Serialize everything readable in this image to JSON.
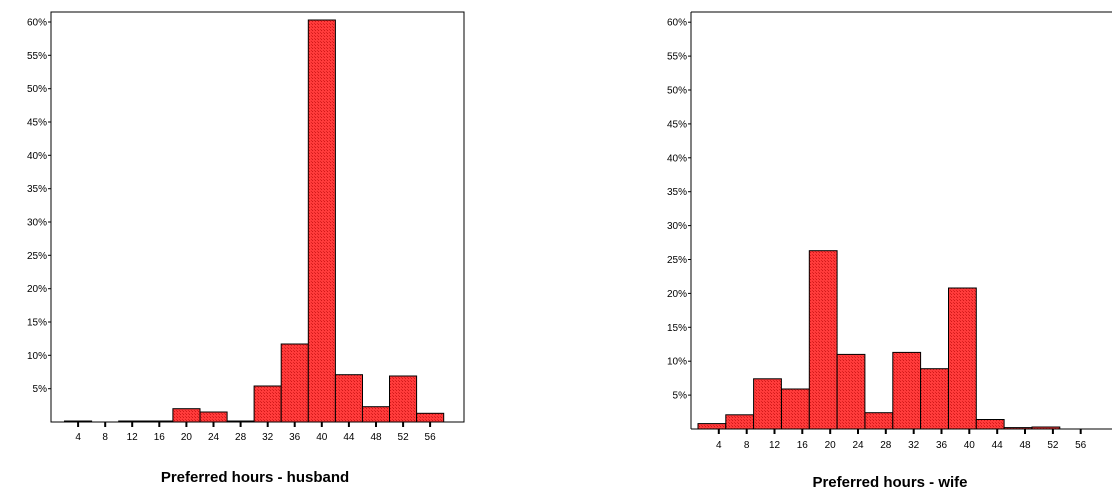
{
  "chart_data": [
    {
      "type": "bar",
      "title": "",
      "xlabel": "Preferred hours - husband",
      "ylabel": "",
      "ylim": [
        0,
        61.5
      ],
      "yticks": [
        "5%",
        "10%",
        "15%",
        "20%",
        "25%",
        "30%",
        "35%",
        "40%",
        "45%",
        "50%",
        "55%",
        "60%"
      ],
      "ytick_values": [
        5,
        10,
        15,
        20,
        25,
        30,
        35,
        40,
        45,
        50,
        55,
        60
      ],
      "xticks": [
        "4",
        "8",
        "12",
        "16",
        "20",
        "24",
        "28",
        "32",
        "36",
        "40",
        "44",
        "48",
        "52",
        "56"
      ],
      "bin_edges": [
        2,
        6,
        10,
        14,
        18,
        22,
        26,
        30,
        34,
        38,
        42,
        46,
        50,
        54,
        58
      ],
      "values": [
        0.15,
        0,
        0.15,
        0.15,
        2.0,
        1.5,
        0.15,
        5.4,
        11.7,
        60.3,
        7.1,
        2.3,
        6.9,
        1.3
      ],
      "bar_color": "#ff3333",
      "grid": false
    },
    {
      "type": "bar",
      "title": "",
      "xlabel": "Preferred hours - wife",
      "ylabel": "",
      "ylim": [
        0,
        61.5
      ],
      "yticks": [
        "5%",
        "10%",
        "15%",
        "20%",
        "25%",
        "30%",
        "35%",
        "40%",
        "45%",
        "50%",
        "55%",
        "60%"
      ],
      "ytick_values": [
        5,
        10,
        15,
        20,
        25,
        30,
        35,
        40,
        45,
        50,
        55,
        60
      ],
      "xticks": [
        "4",
        "8",
        "12",
        "16",
        "20",
        "24",
        "28",
        "32",
        "36",
        "40",
        "44",
        "48",
        "52",
        "56"
      ],
      "bin_edges": [
        1,
        5,
        9,
        13,
        17,
        21,
        25,
        29,
        33,
        37,
        41,
        45,
        49,
        53,
        57
      ],
      "values": [
        0.8,
        2.1,
        7.4,
        5.9,
        26.3,
        11.0,
        2.4,
        11.3,
        8.9,
        20.8,
        1.4,
        0.2,
        0.3,
        0
      ],
      "bar_color": "#ff3333",
      "grid": false
    }
  ]
}
